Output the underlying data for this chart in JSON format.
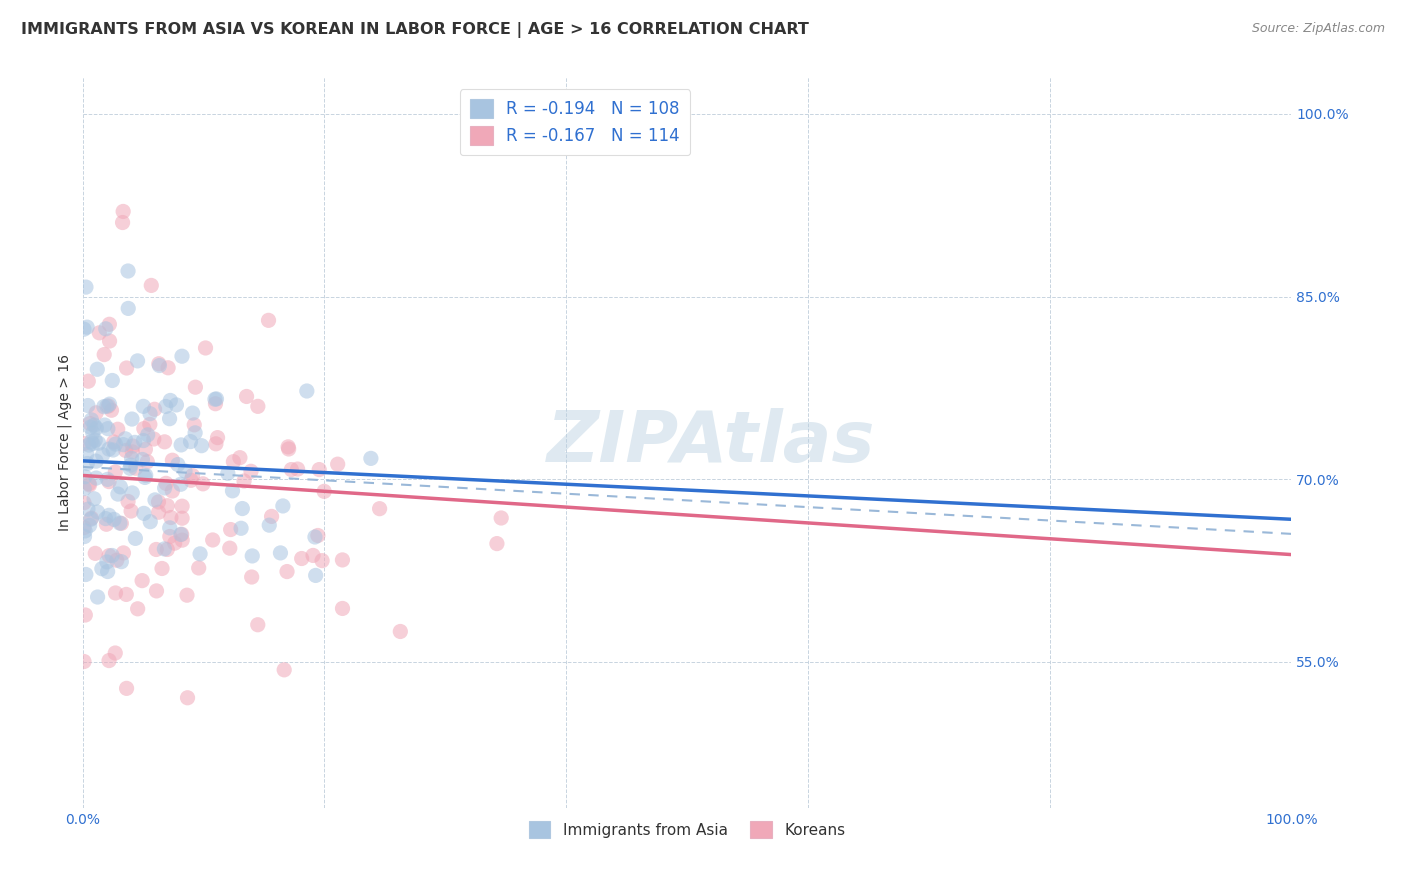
{
  "title": "IMMIGRANTS FROM ASIA VS KOREAN IN LABOR FORCE | AGE > 16 CORRELATION CHART",
  "source": "Source: ZipAtlas.com",
  "xlabel": "",
  "ylabel": "In Labor Force | Age > 16",
  "watermark": "ZIPAtlas",
  "xlim": [
    0.0,
    1.0
  ],
  "ylim": [
    0.43,
    1.03
  ],
  "xticks": [
    0.0,
    0.2,
    0.4,
    0.6,
    0.8,
    1.0
  ],
  "xticklabels": [
    "0.0%",
    "",
    "",
    "",
    "",
    "100.0%"
  ],
  "yticks": [
    0.55,
    0.7,
    0.85,
    1.0
  ],
  "yticklabels": [
    "55.0%",
    "70.0%",
    "85.0%",
    "100.0%"
  ],
  "blue_color": "#a8c4e0",
  "pink_color": "#f0a8b8",
  "blue_line_color": "#3070d0",
  "pink_line_color": "#e06888",
  "dash_line_color": "#9ab8d8",
  "legend_R_blue": "-0.194",
  "legend_N_blue": "108",
  "legend_R_pink": "-0.167",
  "legend_N_pink": "114",
  "bottom_legend_blue": "Immigrants from Asia",
  "bottom_legend_pink": "Koreans",
  "N_blue": 108,
  "N_pink": 114,
  "blue_intercept": 0.715,
  "blue_slope": -0.048,
  "pink_intercept": 0.703,
  "pink_slope": -0.065,
  "dash_intercept": 0.71,
  "dash_slope": -0.055,
  "background_color": "#ffffff",
  "grid_color": "#c8d4e0",
  "title_fontsize": 11.5,
  "axis_label_fontsize": 10,
  "tick_fontsize": 10,
  "watermark_fontsize": 52,
  "watermark_color": "#b8cfe0",
  "watermark_alpha": 0.45,
  "seed": 42,
  "marker_size": 120,
  "marker_alpha": 0.55,
  "tick_color": "#3070d0",
  "text_color": "#333333",
  "legend_text_color": "#3070d0"
}
